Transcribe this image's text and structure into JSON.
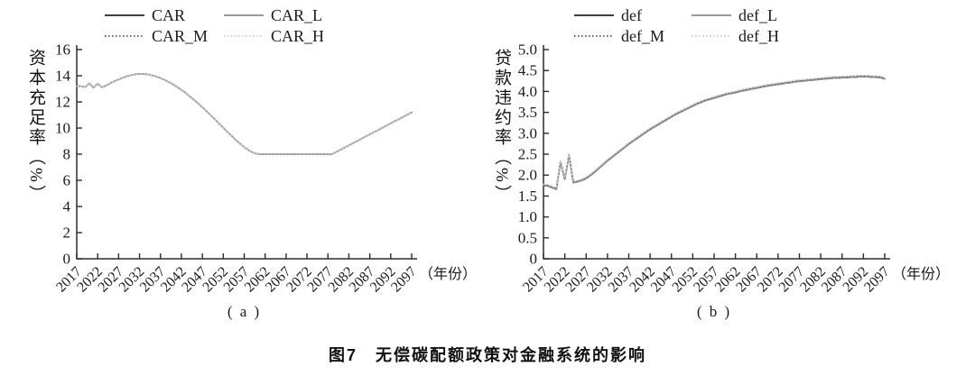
{
  "figure": {
    "caption": "图7　无偿碳配额政策对金融系统的影响"
  },
  "chart_data": [
    {
      "id": "a",
      "type": "line",
      "panel_label": "( a )",
      "ylabel": "资本充足率（%）",
      "xlabel": "（年份）",
      "ylim": [
        0,
        16
      ],
      "ytick_values": [
        0,
        2,
        4,
        6,
        8,
        10,
        12,
        14,
        16
      ],
      "ytick_labels": [
        "0",
        "2",
        "4",
        "6",
        "8",
        "10",
        "12",
        "14",
        "16"
      ],
      "x_range": [
        2017,
        2097
      ],
      "x_step": 1,
      "x_ticks": [
        2017,
        2022,
        2027,
        2032,
        2037,
        2042,
        2047,
        2052,
        2057,
        2062,
        2067,
        2072,
        2077,
        2082,
        2087,
        2092,
        2097
      ],
      "legend_position": "top",
      "grid": false,
      "values": [
        13.2,
        13.22,
        13.12,
        13.42,
        13.1,
        13.4,
        13.12,
        13.25,
        13.42,
        13.58,
        13.72,
        13.85,
        13.96,
        14.05,
        14.11,
        14.15,
        14.14,
        14.1,
        14.03,
        13.94,
        13.82,
        13.68,
        13.52,
        13.34,
        13.14,
        12.92,
        12.68,
        12.43,
        12.16,
        11.88,
        11.59,
        11.29,
        10.98,
        10.66,
        10.34,
        10.02,
        9.7,
        9.39,
        9.09,
        8.81,
        8.55,
        8.32,
        8.14,
        8.03,
        8,
        8,
        8,
        8,
        8,
        8,
        8,
        8,
        8,
        8,
        8,
        8,
        8,
        8,
        8,
        8,
        8,
        8,
        8.17,
        8.34,
        8.51,
        8.67,
        8.84,
        9.01,
        9.18,
        9.35,
        9.52,
        9.68,
        9.85,
        10.02,
        10.19,
        10.36,
        10.53,
        10.69,
        10.86,
        11.03,
        11.2
      ],
      "series": [
        {
          "name": "CAR",
          "line": "solid",
          "color": "#3f3f3f",
          "dy": 0
        },
        {
          "name": "CAR_L",
          "line": "solid",
          "color": "#9a9a9a",
          "dy": 0
        },
        {
          "name": "CAR_M",
          "line": "dotted",
          "color": "#555555",
          "dy": 0
        },
        {
          "name": "CAR_H",
          "line": "dotted",
          "color": "#cbcbcb",
          "dy": 0
        }
      ]
    },
    {
      "id": "b",
      "type": "line",
      "panel_label": "( b )",
      "ylabel": "贷款违约率（%）",
      "xlabel": "（年份）",
      "ylim": [
        0,
        5
      ],
      "ytick_values": [
        0,
        0.5,
        1,
        1.5,
        2,
        2.5,
        3,
        3.5,
        4,
        4.5,
        5
      ],
      "ytick_labels": [
        "0",
        "0.5",
        "1.0",
        "1.5",
        "2.0",
        "2.5",
        "3.0",
        "3.5",
        "4.0",
        "4.5",
        "5.0"
      ],
      "x_range": [
        2017,
        2097
      ],
      "x_step": 1,
      "x_ticks": [
        2017,
        2022,
        2027,
        2032,
        2037,
        2042,
        2047,
        2052,
        2057,
        2062,
        2067,
        2072,
        2077,
        2082,
        2087,
        2092,
        2097
      ],
      "legend_position": "top",
      "grid": false,
      "values": [
        1.75,
        1.74,
        1.7,
        1.66,
        2.32,
        1.9,
        2.48,
        1.82,
        1.84,
        1.87,
        1.92,
        1.99,
        2.07,
        2.16,
        2.25,
        2.34,
        2.42,
        2.5,
        2.58,
        2.66,
        2.74,
        2.81,
        2.88,
        2.95,
        3.02,
        3.09,
        3.15,
        3.21,
        3.27,
        3.33,
        3.39,
        3.45,
        3.5,
        3.55,
        3.6,
        3.65,
        3.7,
        3.74,
        3.78,
        3.81,
        3.84,
        3.87,
        3.9,
        3.93,
        3.95,
        3.97,
        4,
        4.02,
        4.04,
        4.06,
        4.08,
        4.1,
        4.12,
        4.14,
        4.15,
        4.17,
        4.18,
        4.2,
        4.21,
        4.23,
        4.24,
        4.25,
        4.26,
        4.27,
        4.28,
        4.29,
        4.3,
        4.31,
        4.32,
        4.32,
        4.33,
        4.33,
        4.34,
        4.34,
        4.35,
        4.35,
        4.35,
        4.34,
        4.34,
        4.33,
        4.3
      ],
      "series": [
        {
          "name": "def",
          "line": "solid",
          "color": "#3f3f3f",
          "dy": 0
        },
        {
          "name": "def_L",
          "line": "solid",
          "color": "#9a9a9a",
          "dy": 0
        },
        {
          "name": "def_M",
          "line": "dotted",
          "color": "#555555",
          "dy": 0.02
        },
        {
          "name": "def_H",
          "line": "dotted",
          "color": "#cbcbcb",
          "dy": 0.035
        }
      ]
    }
  ]
}
